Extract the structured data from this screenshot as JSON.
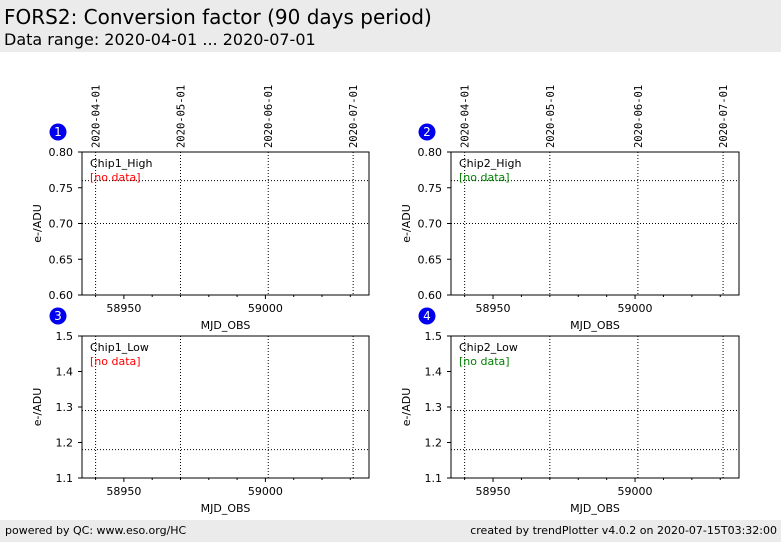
{
  "header": {
    "title": "FORS2: Conversion factor (90 days period)",
    "subtitle": "Data range: 2020-04-01 ... 2020-07-01"
  },
  "footer": {
    "left": "powered by QC: www.eso.org/HC",
    "right": "created by trendPlotter v4.0.2 on 2020-07-15T03:32:00"
  },
  "colors": {
    "badge": "#0000ee",
    "no_data_chip1": "#ff0000",
    "no_data_chip2": "#008000",
    "header_bg": "#ebebeb"
  },
  "chart_data": [
    {
      "type": "scatter",
      "panel_number": "1",
      "label": "Chip1_High",
      "note": "[no data]",
      "note_color": "#ff0000",
      "xlabel": "MJD_OBS",
      "ylabel": "e-/ADU",
      "xlim": [
        58935.2,
        59036.6
      ],
      "ylim": [
        0.6,
        0.8
      ],
      "xticks": [
        58950,
        59000
      ],
      "xticklabels": [
        "58950",
        "59000"
      ],
      "yticks": [
        0.6,
        0.65,
        0.7,
        0.75,
        0.8
      ],
      "yticklabels": [
        "0.60",
        "0.65",
        "0.70",
        "0.75",
        "0.80"
      ],
      "date_ticks": [
        58940,
        58970,
        59001,
        59031
      ],
      "date_labels": [
        "2020-04-01",
        "2020-05-01",
        "2020-06-01",
        "2020-07-01"
      ],
      "ref_lines": [
        0.76,
        0.7
      ],
      "series": []
    },
    {
      "type": "scatter",
      "panel_number": "2",
      "label": "Chip2_High",
      "note": "[no data]",
      "note_color": "#008000",
      "xlabel": "MJD_OBS",
      "ylabel": "e-/ADU",
      "xlim": [
        58935.2,
        59036.6
      ],
      "ylim": [
        0.6,
        0.8
      ],
      "xticks": [
        58950,
        59000
      ],
      "xticklabels": [
        "58950",
        "59000"
      ],
      "yticks": [
        0.6,
        0.65,
        0.7,
        0.75,
        0.8
      ],
      "yticklabels": [
        "0.60",
        "0.65",
        "0.70",
        "0.75",
        "0.80"
      ],
      "date_ticks": [
        58940,
        58970,
        59001,
        59031
      ],
      "date_labels": [
        "2020-04-01",
        "2020-05-01",
        "2020-06-01",
        "2020-07-01"
      ],
      "ref_lines": [
        0.76,
        0.7
      ],
      "series": []
    },
    {
      "type": "scatter",
      "panel_number": "3",
      "label": "Chip1_Low",
      "note": "[no data]",
      "note_color": "#ff0000",
      "xlabel": "MJD_OBS",
      "ylabel": "e-/ADU",
      "xlim": [
        58935.2,
        59036.6
      ],
      "ylim": [
        1.1,
        1.5
      ],
      "xticks": [
        58950,
        59000
      ],
      "xticklabels": [
        "58950",
        "59000"
      ],
      "yticks": [
        1.1,
        1.2,
        1.3,
        1.4,
        1.5
      ],
      "yticklabels": [
        "1.1",
        "1.2",
        "1.3",
        "1.4",
        "1.5"
      ],
      "date_ticks": [
        58940,
        58970,
        59001,
        59031
      ],
      "date_labels": [],
      "ref_lines": [
        1.29,
        1.18
      ],
      "series": []
    },
    {
      "type": "scatter",
      "panel_number": "4",
      "label": "Chip2_Low",
      "note": "[no data]",
      "note_color": "#008000",
      "xlabel": "MJD_OBS",
      "ylabel": "e-/ADU",
      "xlim": [
        58935.2,
        59036.6
      ],
      "ylim": [
        1.1,
        1.5
      ],
      "xticks": [
        58950,
        59000
      ],
      "xticklabels": [
        "58950",
        "59000"
      ],
      "yticks": [
        1.1,
        1.2,
        1.3,
        1.4,
        1.5
      ],
      "yticklabels": [
        "1.1",
        "1.2",
        "1.3",
        "1.4",
        "1.5"
      ],
      "date_ticks": [
        58940,
        58970,
        59001,
        59031
      ],
      "date_labels": [],
      "ref_lines": [
        1.29,
        1.18
      ],
      "series": []
    }
  ]
}
